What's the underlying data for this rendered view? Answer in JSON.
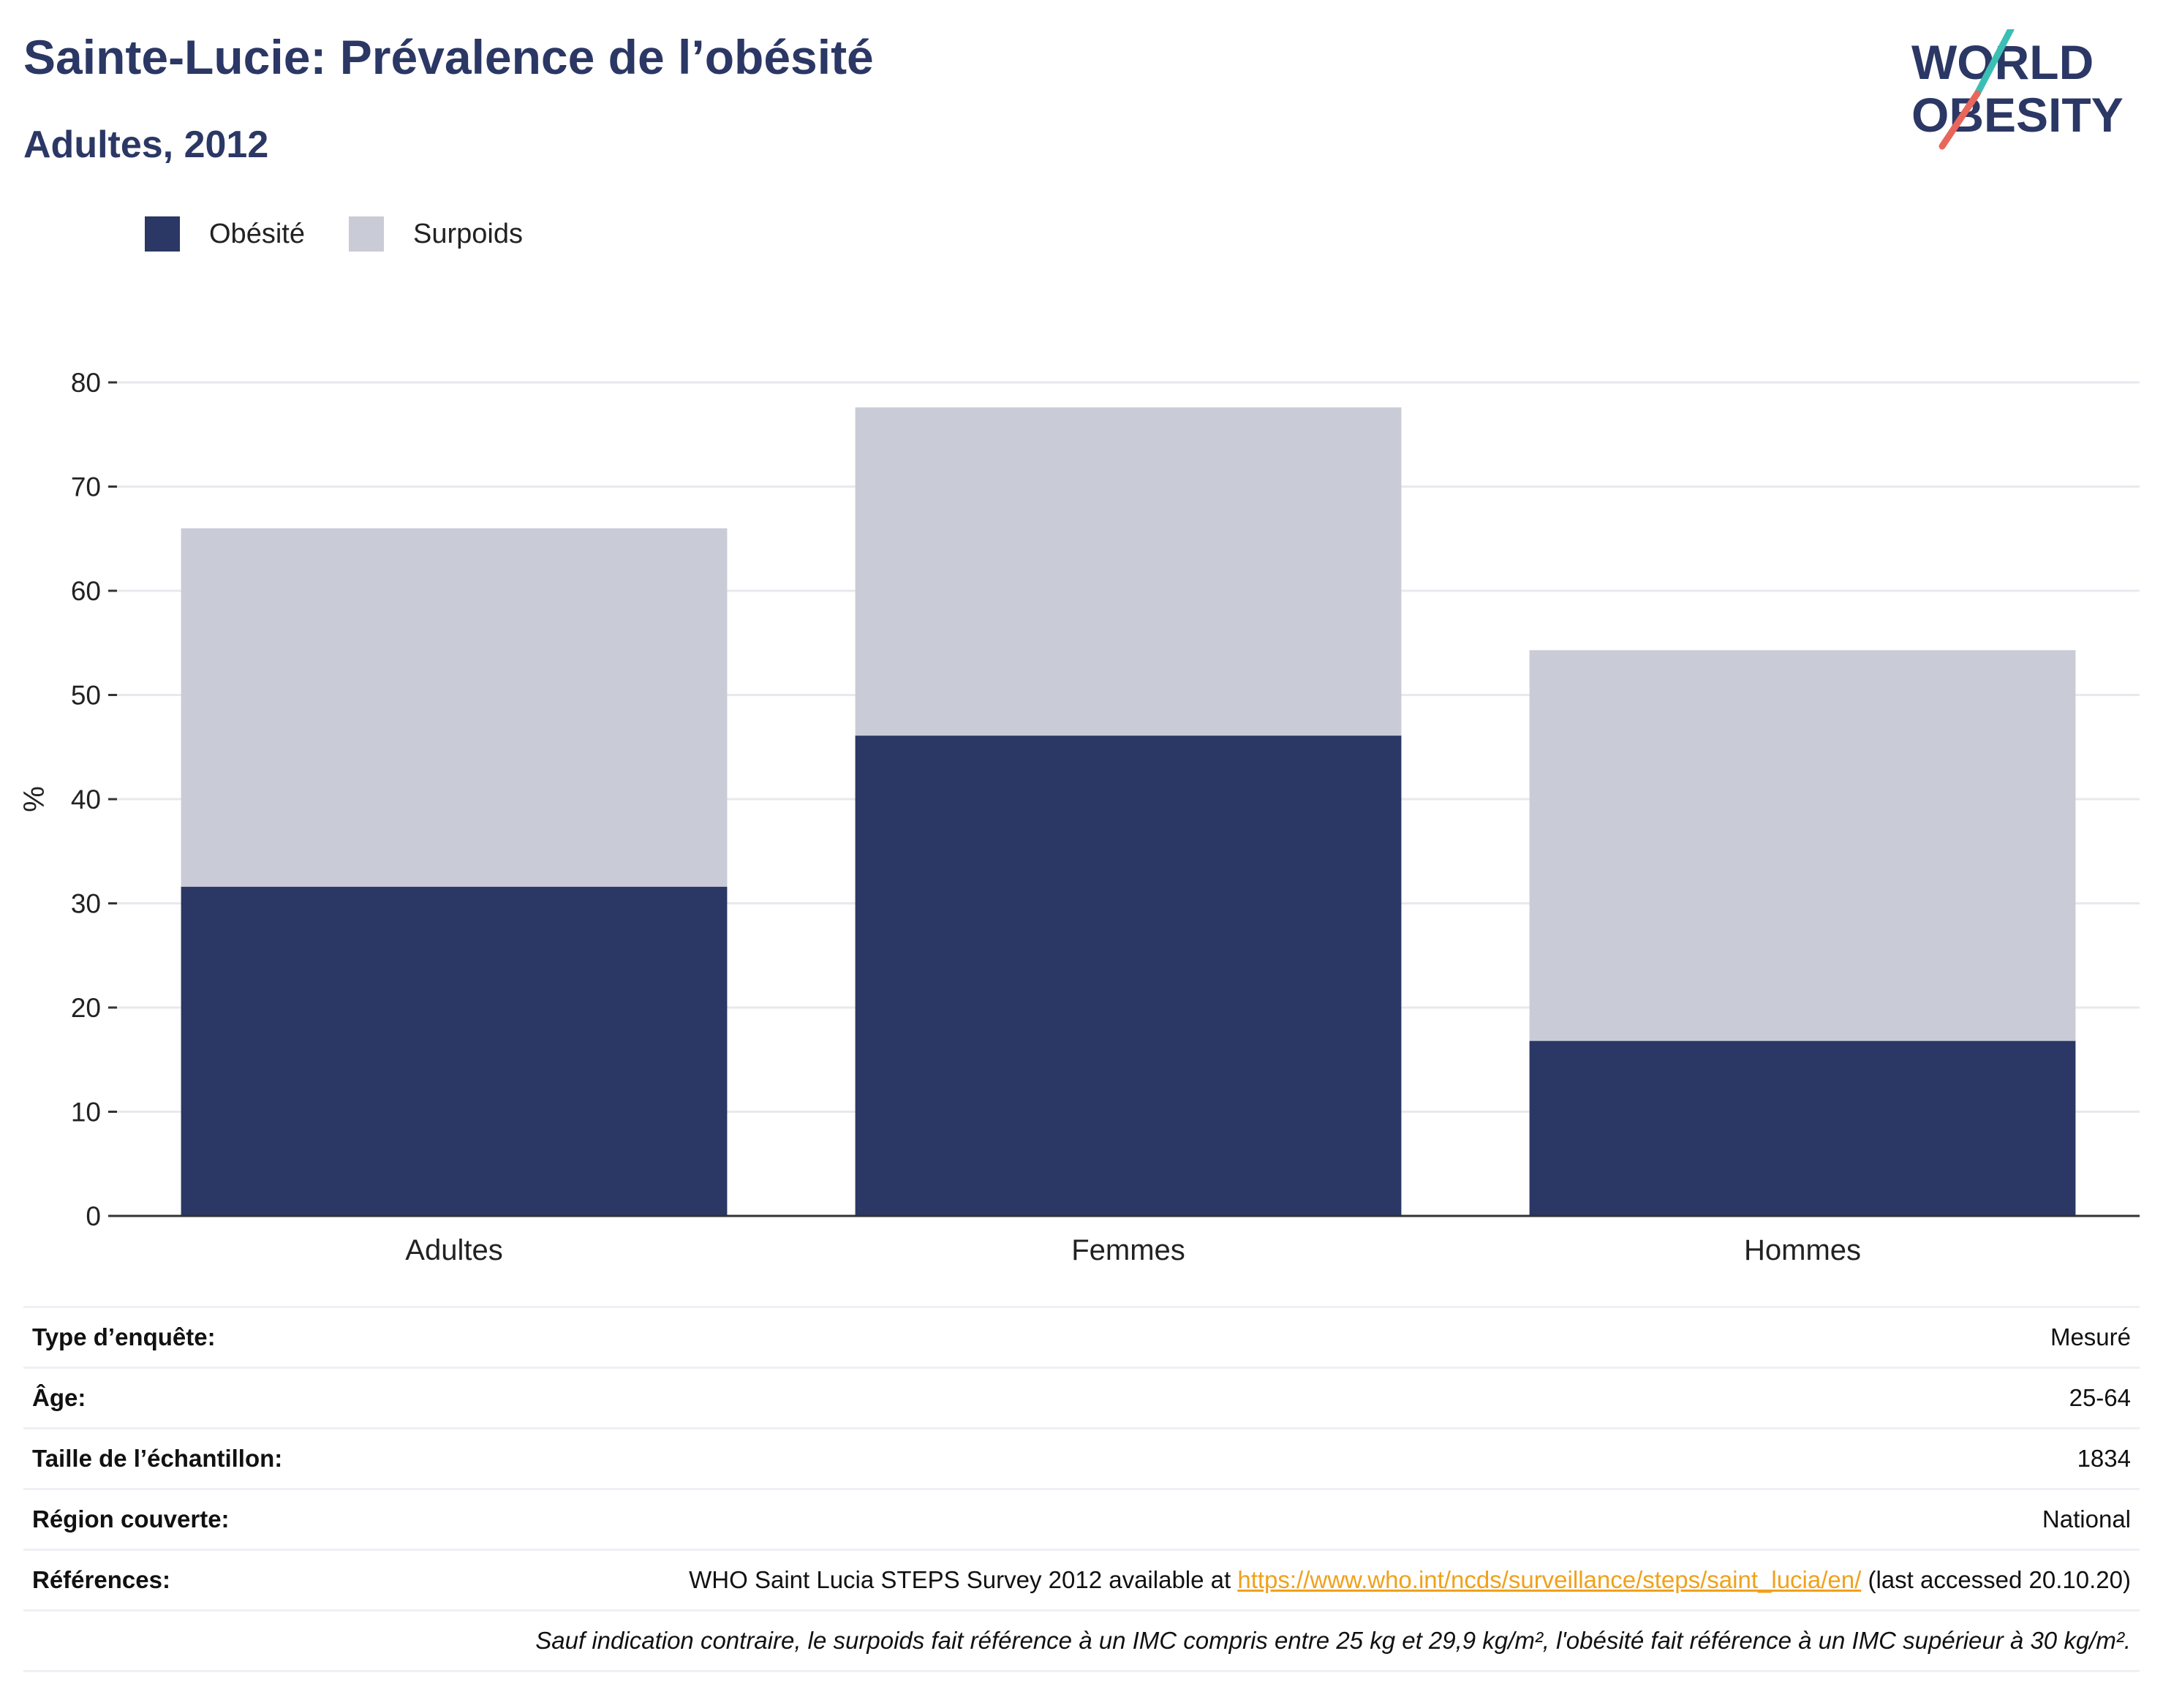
{
  "title": "Sainte-Lucie: Prévalence de l’obésité",
  "subtitle": "Adultes, 2012",
  "logo": {
    "line1": "WORLD",
    "line2": "OBESITY",
    "colors": {
      "text": "#2b3764",
      "slash_top": "#3bbfb4",
      "slash_bottom": "#e8665a"
    }
  },
  "legend": [
    {
      "label": "Obésité",
      "color": "#2b3764"
    },
    {
      "label": "Surpoids",
      "color": "#c9ccd7"
    }
  ],
  "chart_data": {
    "type": "bar",
    "stacked": true,
    "categories": [
      "Adultes",
      "Femmes",
      "Hommes"
    ],
    "series": [
      {
        "name": "Obésité",
        "values": [
          31.6,
          46.1,
          16.8
        ],
        "color": "#2b3764"
      },
      {
        "name": "Surpoids",
        "values": [
          34.4,
          31.5,
          37.5
        ],
        "color": "#c9ccd7"
      }
    ],
    "ylabel": "%",
    "ylim": [
      0,
      80
    ],
    "yticks": [
      0,
      10,
      20,
      30,
      40,
      50,
      60,
      70,
      80
    ],
    "grid": true
  },
  "info": {
    "survey_type": {
      "label": "Type d’enquête:",
      "value": "Mesuré"
    },
    "age": {
      "label": "Âge:",
      "value": "25-64"
    },
    "sample_size": {
      "label": "Taille de l’échantillon:",
      "value": "1834"
    },
    "region": {
      "label": "Région couverte:",
      "value": "National"
    },
    "references": {
      "label": "Références:",
      "prefix": "WHO Saint Lucia STEPS Survey 2012 available at ",
      "link": "https://www.who.int/ncds/surveillance/steps/saint_lucia/en/",
      "suffix": " (last accessed 20.10.20)"
    },
    "note": "Sauf indication contraire, le surpoids fait référence à un IMC compris entre 25 kg et 29,9 kg/m², l'obésité fait référence à un IMC supérieur à 30 kg/m²."
  }
}
